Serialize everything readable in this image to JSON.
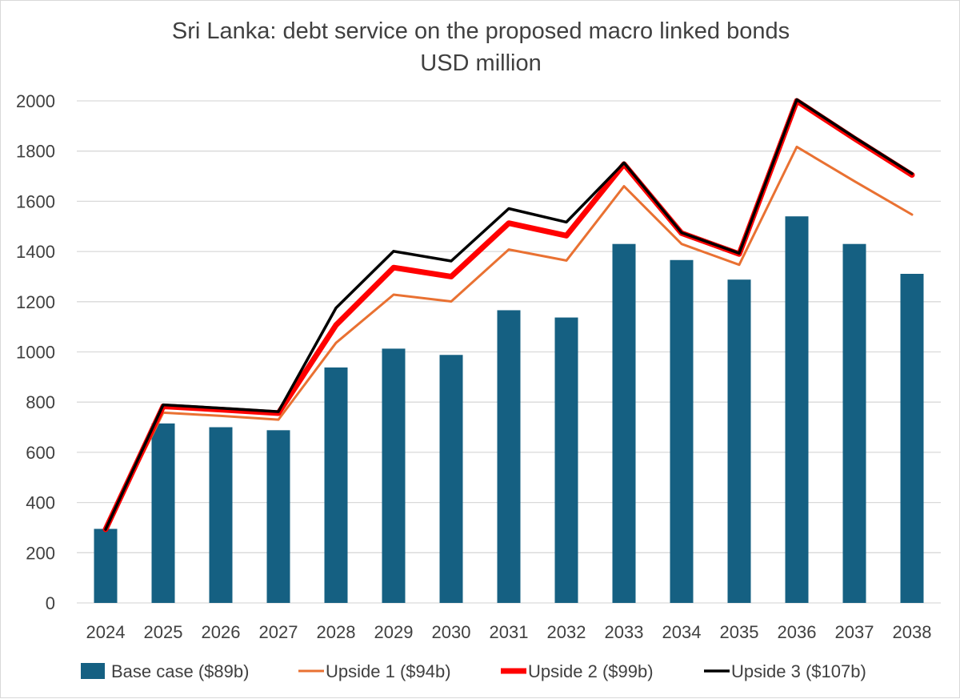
{
  "chart_data": {
    "type": "bar",
    "title": "Sri Lanka: debt service on the proposed macro linked bonds",
    "subtitle": "USD million",
    "xlabel": "",
    "ylabel": "",
    "ylim": [
      0,
      2000
    ],
    "yticks": [
      0,
      200,
      400,
      600,
      800,
      1000,
      1200,
      1400,
      1600,
      1800,
      2000
    ],
    "grid": true,
    "legend_position": "bottom",
    "categories": [
      "2024",
      "2025",
      "2026",
      "2027",
      "2028",
      "2029",
      "2030",
      "2031",
      "2032",
      "2033",
      "2034",
      "2035",
      "2036",
      "2037",
      "2038"
    ],
    "series": [
      {
        "name": "Base case ($89b)",
        "kind": "bar",
        "color": "#156082",
        "values": [
          295,
          715,
          700,
          688,
          938,
          1013,
          988,
          1166,
          1137,
          1430,
          1366,
          1288,
          1540,
          1430,
          1311
        ]
      },
      {
        "name": "Upside 1 ($94b)",
        "kind": "line",
        "color": "#E97132",
        "width": 3,
        "values": [
          293,
          758,
          745,
          730,
          1036,
          1228,
          1201,
          1408,
          1364,
          1660,
          1430,
          1347,
          1817,
          1680,
          1547
        ]
      },
      {
        "name": "Upside 2 ($99b)",
        "kind": "line",
        "color": "#FF0000",
        "width": 7,
        "values": [
          293,
          783,
          770,
          756,
          1107,
          1336,
          1300,
          1513,
          1463,
          1748,
          1473,
          1390,
          2000,
          1850,
          1705
        ]
      },
      {
        "name": "Upside 3 ($107b)",
        "kind": "line",
        "color": "#000000",
        "width": 3.5,
        "values": [
          293,
          789,
          776,
          762,
          1175,
          1401,
          1362,
          1571,
          1517,
          1753,
          1475,
          1393,
          2005,
          1855,
          1710
        ]
      }
    ]
  }
}
